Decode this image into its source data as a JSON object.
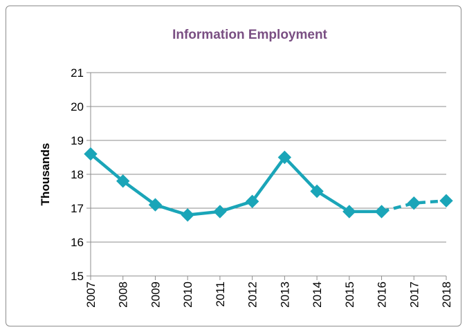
{
  "chart_data": {
    "type": "line",
    "title": "Information Employment",
    "xlabel": "",
    "ylabel": "Thousands",
    "categories": [
      "2007",
      "2008",
      "2009",
      "2010",
      "2011",
      "2012",
      "2013",
      "2014",
      "2015",
      "2016",
      "2017",
      "2018"
    ],
    "ylim": [
      15,
      21
    ],
    "yticks": [
      "15",
      "16",
      "17",
      "18",
      "19",
      "20",
      "21"
    ],
    "grid": true,
    "legend": "none",
    "series": [
      {
        "values": [
          18.6,
          17.8,
          17.1,
          16.8,
          16.9,
          17.2,
          18.5,
          17.5,
          16.9,
          16.9,
          17.15,
          17.22
        ],
        "solid_through_index": 9,
        "projected_from_index": 9,
        "color": "#1aa5b8"
      }
    ]
  }
}
